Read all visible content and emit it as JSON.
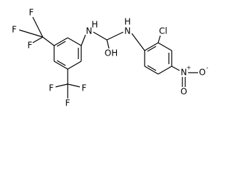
{
  "atoms": {
    "f_top_1": "F",
    "f_top_2": "F",
    "f_top_3": "F",
    "f_bot_1": "F",
    "f_bot_2": "F",
    "f_bot_3": "F",
    "nh_left_n": "N",
    "nh_left_h": "H",
    "nh_right_n": "N",
    "nh_right_h": "H",
    "hydroxyl": "OH",
    "chlorine": "Cl",
    "nitro_n": "N",
    "nitro_charge_pos": "+",
    "nitro_o_1": "O",
    "nitro_charge_neg": "-",
    "nitro_o_2": "O"
  }
}
